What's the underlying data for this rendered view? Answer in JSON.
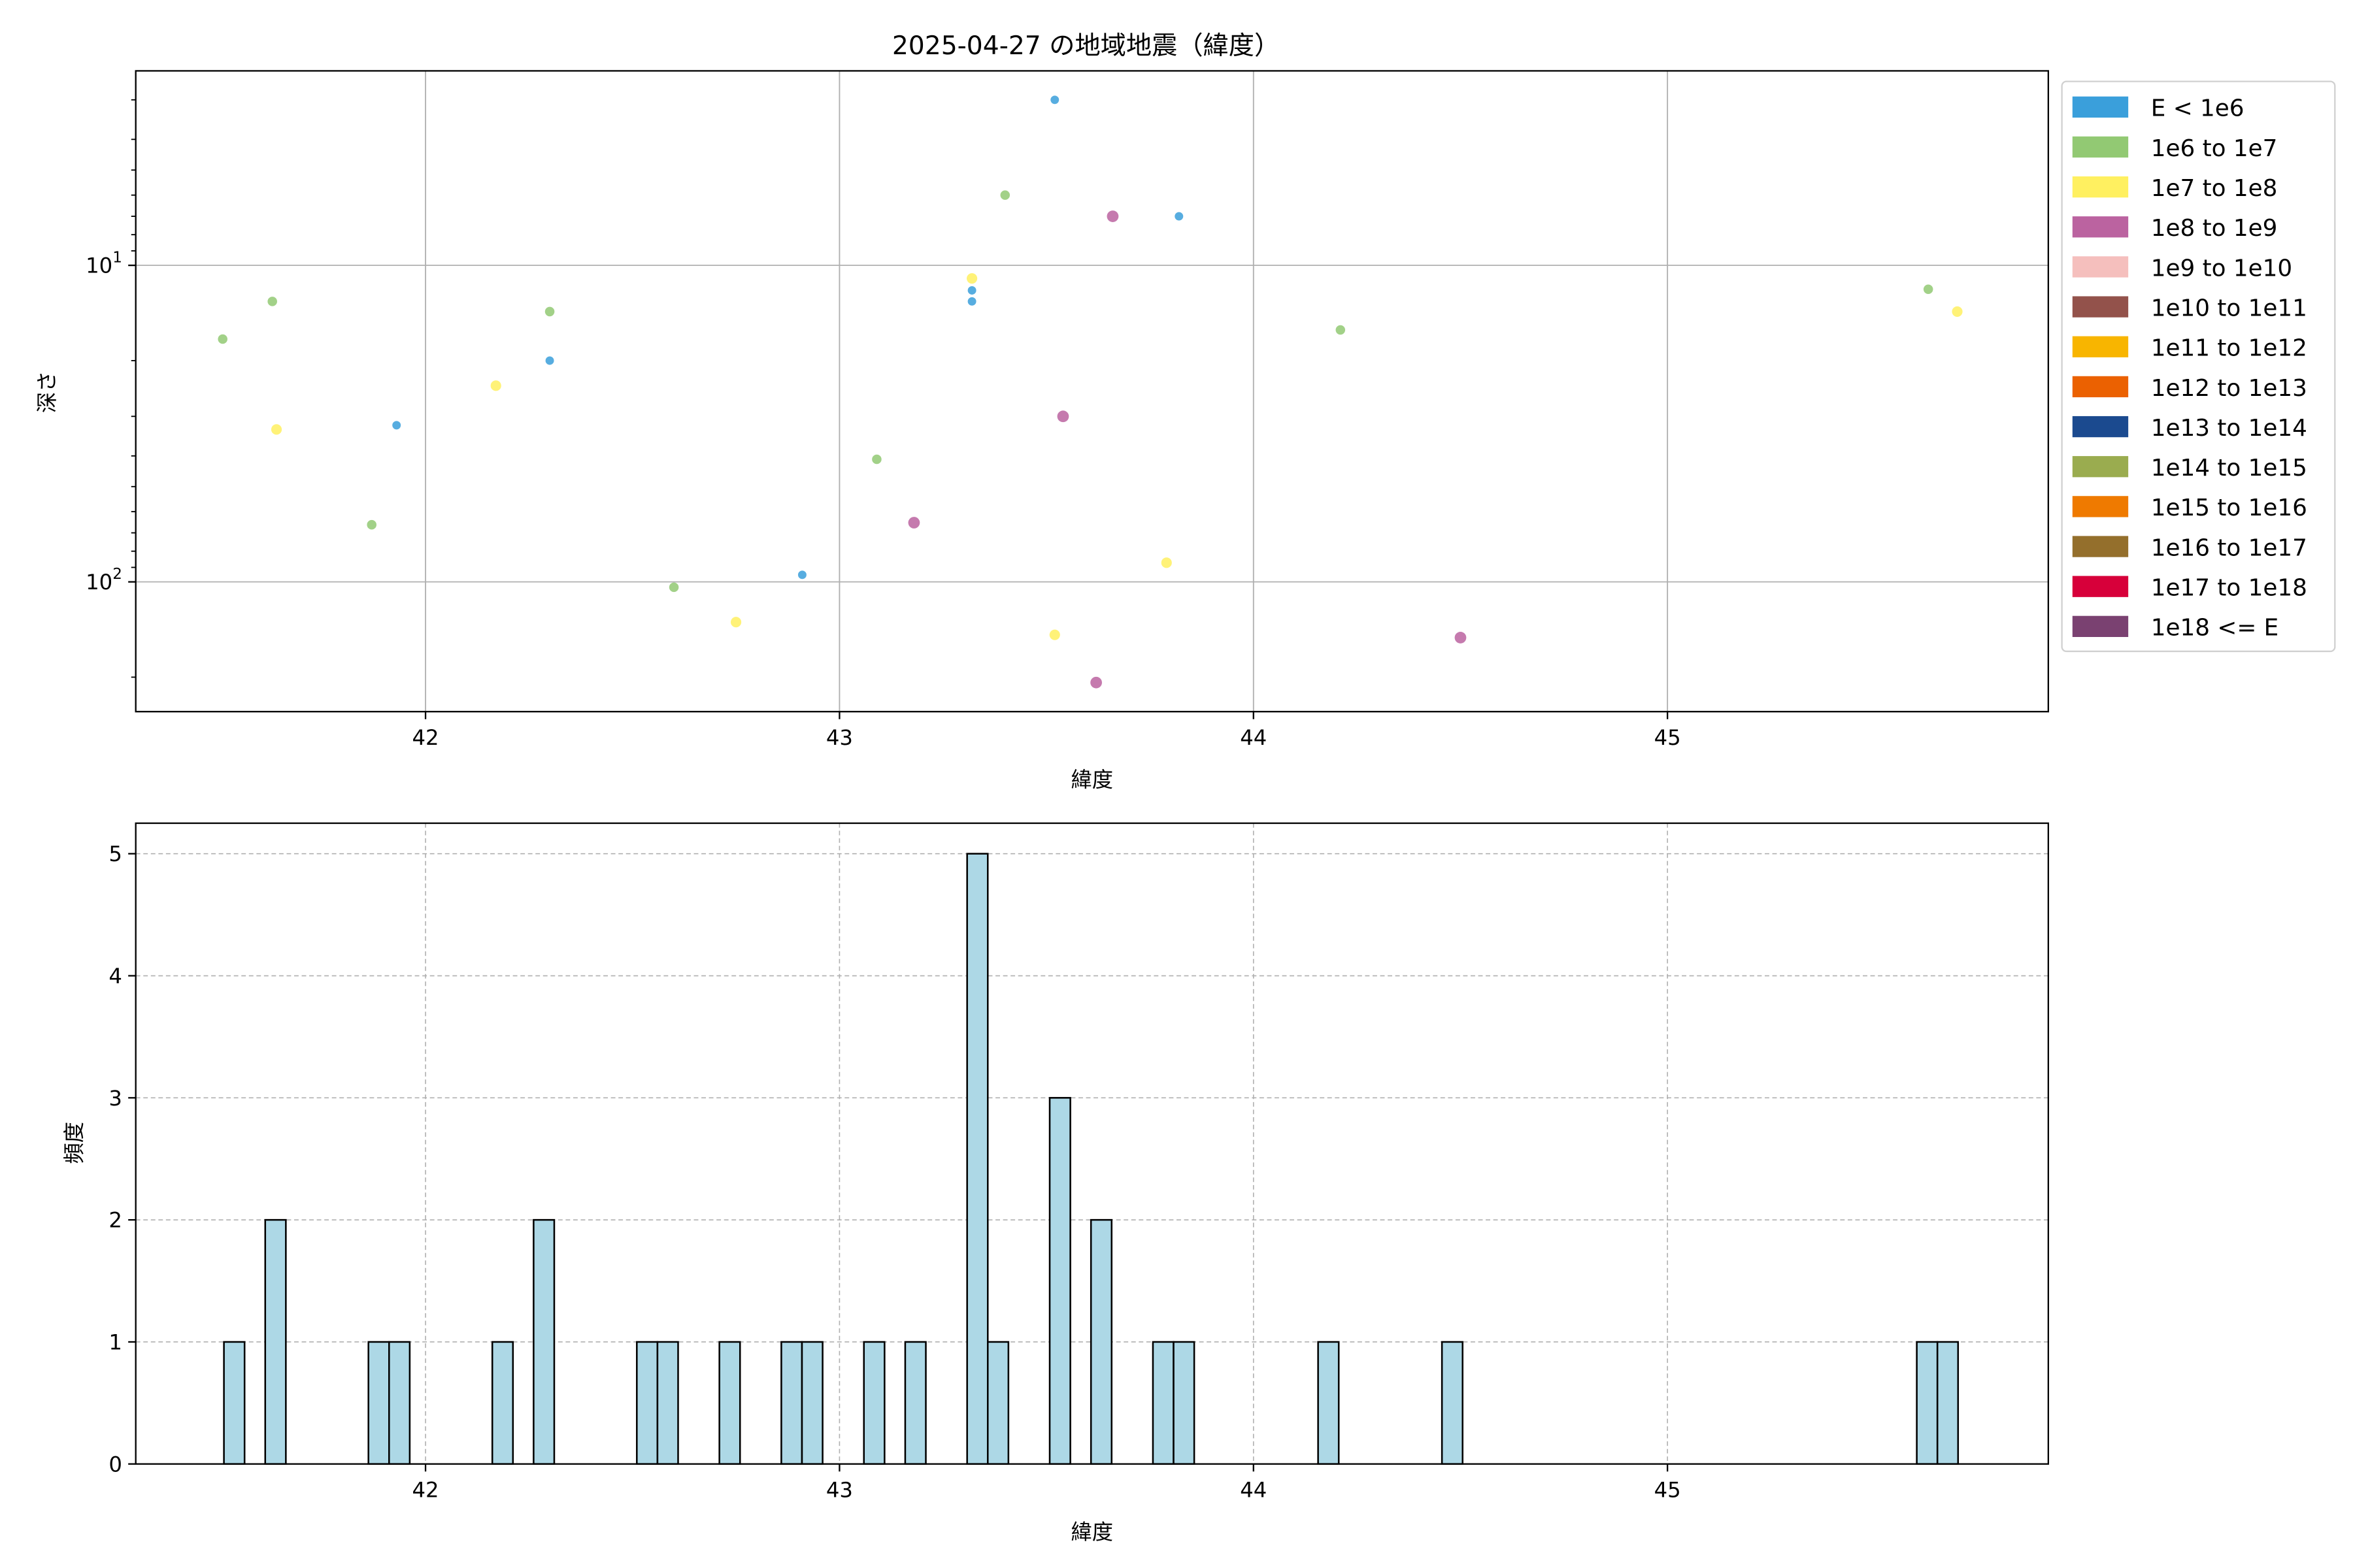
{
  "chart_data": [
    {
      "type": "scatter",
      "title": "2025-04-27 の地域地震（緯度）",
      "xlabel": "緯度",
      "ylabel": "深さ",
      "xlim": [
        41.3,
        45.92
      ],
      "ylim": [
        257,
        2.43
      ],
      "y_scale": "log",
      "y_inverted": true,
      "grid": true,
      "x_ticks": [
        42,
        43,
        44,
        45
      ],
      "y_ticks": [
        {
          "value": 10,
          "label": "10^1"
        },
        {
          "value": 100,
          "label": "10^2"
        }
      ],
      "legend_placement": "outside-right",
      "legend": [
        {
          "label": "E < 1e6",
          "color": "#3a9fdb"
        },
        {
          "label": "1e6 to 1e7",
          "color": "#92c973"
        },
        {
          "label": "1e7 to 1e8",
          "color": "#fff060"
        },
        {
          "label": "1e8 to 1e9",
          "color": "#bb63a0"
        },
        {
          "label": "1e9 to 1e10",
          "color": "#f5bfbd"
        },
        {
          "label": "1e10 to 1e11",
          "color": "#93524b"
        },
        {
          "label": "1e11 to 1e12",
          "color": "#f8b500"
        },
        {
          "label": "1e12 to 1e13",
          "color": "#eb6101"
        },
        {
          "label": "1e13 to 1e14",
          "color": "#1b4a8f"
        },
        {
          "label": "1e14 to 1e15",
          "color": "#9aac4f"
        },
        {
          "label": "1e15 to 1e16",
          "color": "#ef7a00"
        },
        {
          "label": "1e16 to 1e17",
          "color": "#946f2c"
        },
        {
          "label": "1e17 to 1e18",
          "color": "#d7003a"
        },
        {
          "label": "1e18 <= E",
          "color": "#7a4171"
        }
      ],
      "points": [
        {
          "lat": 41.51,
          "depth": 17.1,
          "class": 1
        },
        {
          "lat": 41.63,
          "depth": 13.0,
          "class": 1
        },
        {
          "lat": 41.64,
          "depth": 33.0,
          "class": 2
        },
        {
          "lat": 41.87,
          "depth": 66.0,
          "class": 1
        },
        {
          "lat": 41.93,
          "depth": 32.0,
          "class": 0
        },
        {
          "lat": 42.17,
          "depth": 24.0,
          "class": 2
        },
        {
          "lat": 42.3,
          "depth": 14.0,
          "class": 1
        },
        {
          "lat": 42.3,
          "depth": 20.0,
          "class": 0
        },
        {
          "lat": 42.6,
          "depth": 104,
          "class": 1
        },
        {
          "lat": 42.75,
          "depth": 134,
          "class": 2
        },
        {
          "lat": 42.91,
          "depth": 95,
          "class": 0
        },
        {
          "lat": 43.09,
          "depth": 41,
          "class": 1
        },
        {
          "lat": 43.18,
          "depth": 65,
          "class": 3
        },
        {
          "lat": 43.32,
          "depth": 11.0,
          "class": 2
        },
        {
          "lat": 43.32,
          "depth": 12.0,
          "class": 0
        },
        {
          "lat": 43.32,
          "depth": 13.0,
          "class": 0
        },
        {
          "lat": 43.4,
          "depth": 6.0,
          "class": 1
        },
        {
          "lat": 43.52,
          "depth": 3.0,
          "class": 0
        },
        {
          "lat": 43.52,
          "depth": 147,
          "class": 2
        },
        {
          "lat": 43.54,
          "depth": 30,
          "class": 3
        },
        {
          "lat": 43.62,
          "depth": 208,
          "class": 3
        },
        {
          "lat": 43.66,
          "depth": 7.0,
          "class": 3
        },
        {
          "lat": 43.79,
          "depth": 87,
          "class": 2
        },
        {
          "lat": 43.82,
          "depth": 7.0,
          "class": 0
        },
        {
          "lat": 44.21,
          "depth": 16.0,
          "class": 1
        },
        {
          "lat": 44.5,
          "depth": 150,
          "class": 3
        },
        {
          "lat": 45.63,
          "depth": 11.9,
          "class": 1
        },
        {
          "lat": 45.7,
          "depth": 14.0,
          "class": 2
        }
      ]
    },
    {
      "type": "bar",
      "subtype": "histogram",
      "xlabel": "緯度",
      "ylabel": "頻度",
      "xlim": [
        41.3,
        45.92
      ],
      "ylim": [
        0,
        5.25
      ],
      "grid": "dashed",
      "x_ticks": [
        42,
        43,
        44,
        45
      ],
      "y_ticks": [
        0,
        1,
        2,
        3,
        4,
        5
      ],
      "bar_color": "#add8e6",
      "bin_range": [
        41.513,
        45.702
      ],
      "counts": [
        1,
        0,
        2,
        0,
        0,
        0,
        0,
        1,
        1,
        0,
        0,
        0,
        0,
        1,
        0,
        2,
        0,
        0,
        0,
        0,
        1,
        1,
        0,
        0,
        1,
        0,
        0,
        1,
        1,
        0,
        0,
        1,
        0,
        1,
        0,
        0,
        5,
        1,
        0,
        0,
        3,
        0,
        2,
        0,
        0,
        1,
        1,
        0,
        0,
        0,
        0,
        0,
        0,
        1,
        0,
        0,
        0,
        0,
        0,
        1,
        0,
        0,
        0,
        0,
        0,
        0,
        0,
        0,
        0,
        0,
        0,
        0,
        0,
        0,
        0,
        0,
        0,
        0,
        0,
        0,
        0,
        0,
        1,
        1
      ]
    }
  ]
}
